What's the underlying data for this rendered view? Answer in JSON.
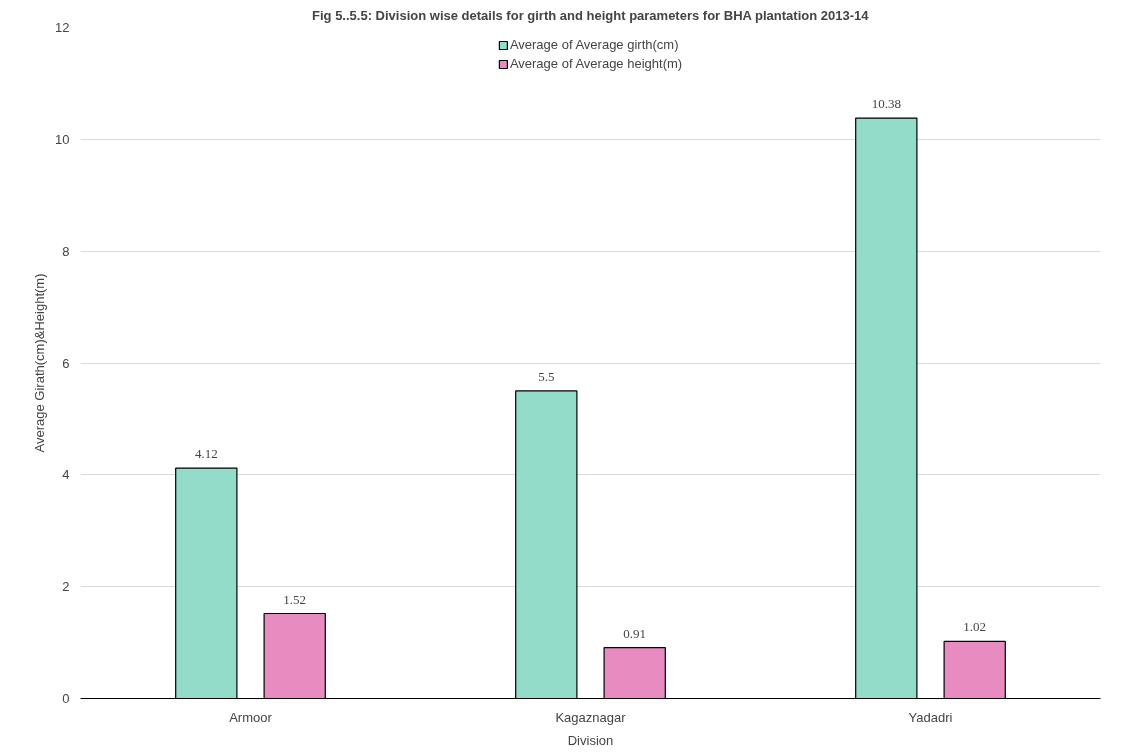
{
  "chart_data": {
    "type": "bar",
    "title": "Fig 5..5.5: Division wise details for girth and height parameters for BHA plantation 2013-14",
    "xlabel": "Division",
    "ylabel": "Average Girath(cm)&Height(m)",
    "categories": [
      "Armoor",
      "Kagaznagar",
      "Yadadri"
    ],
    "series": [
      {
        "name": "Average of Average girth(cm)",
        "color": "#92dcc9",
        "values": [
          4.12,
          5.5,
          10.38
        ]
      },
      {
        "name": "Average of Average height(m)",
        "color": "#e88bc1",
        "values": [
          1.52,
          0.91,
          1.02
        ]
      }
    ],
    "ylim": [
      0,
      12
    ],
    "yticks": [
      0,
      2,
      4,
      6,
      8,
      10,
      12
    ],
    "grid": "y",
    "legend": "top",
    "data_labels": true
  }
}
